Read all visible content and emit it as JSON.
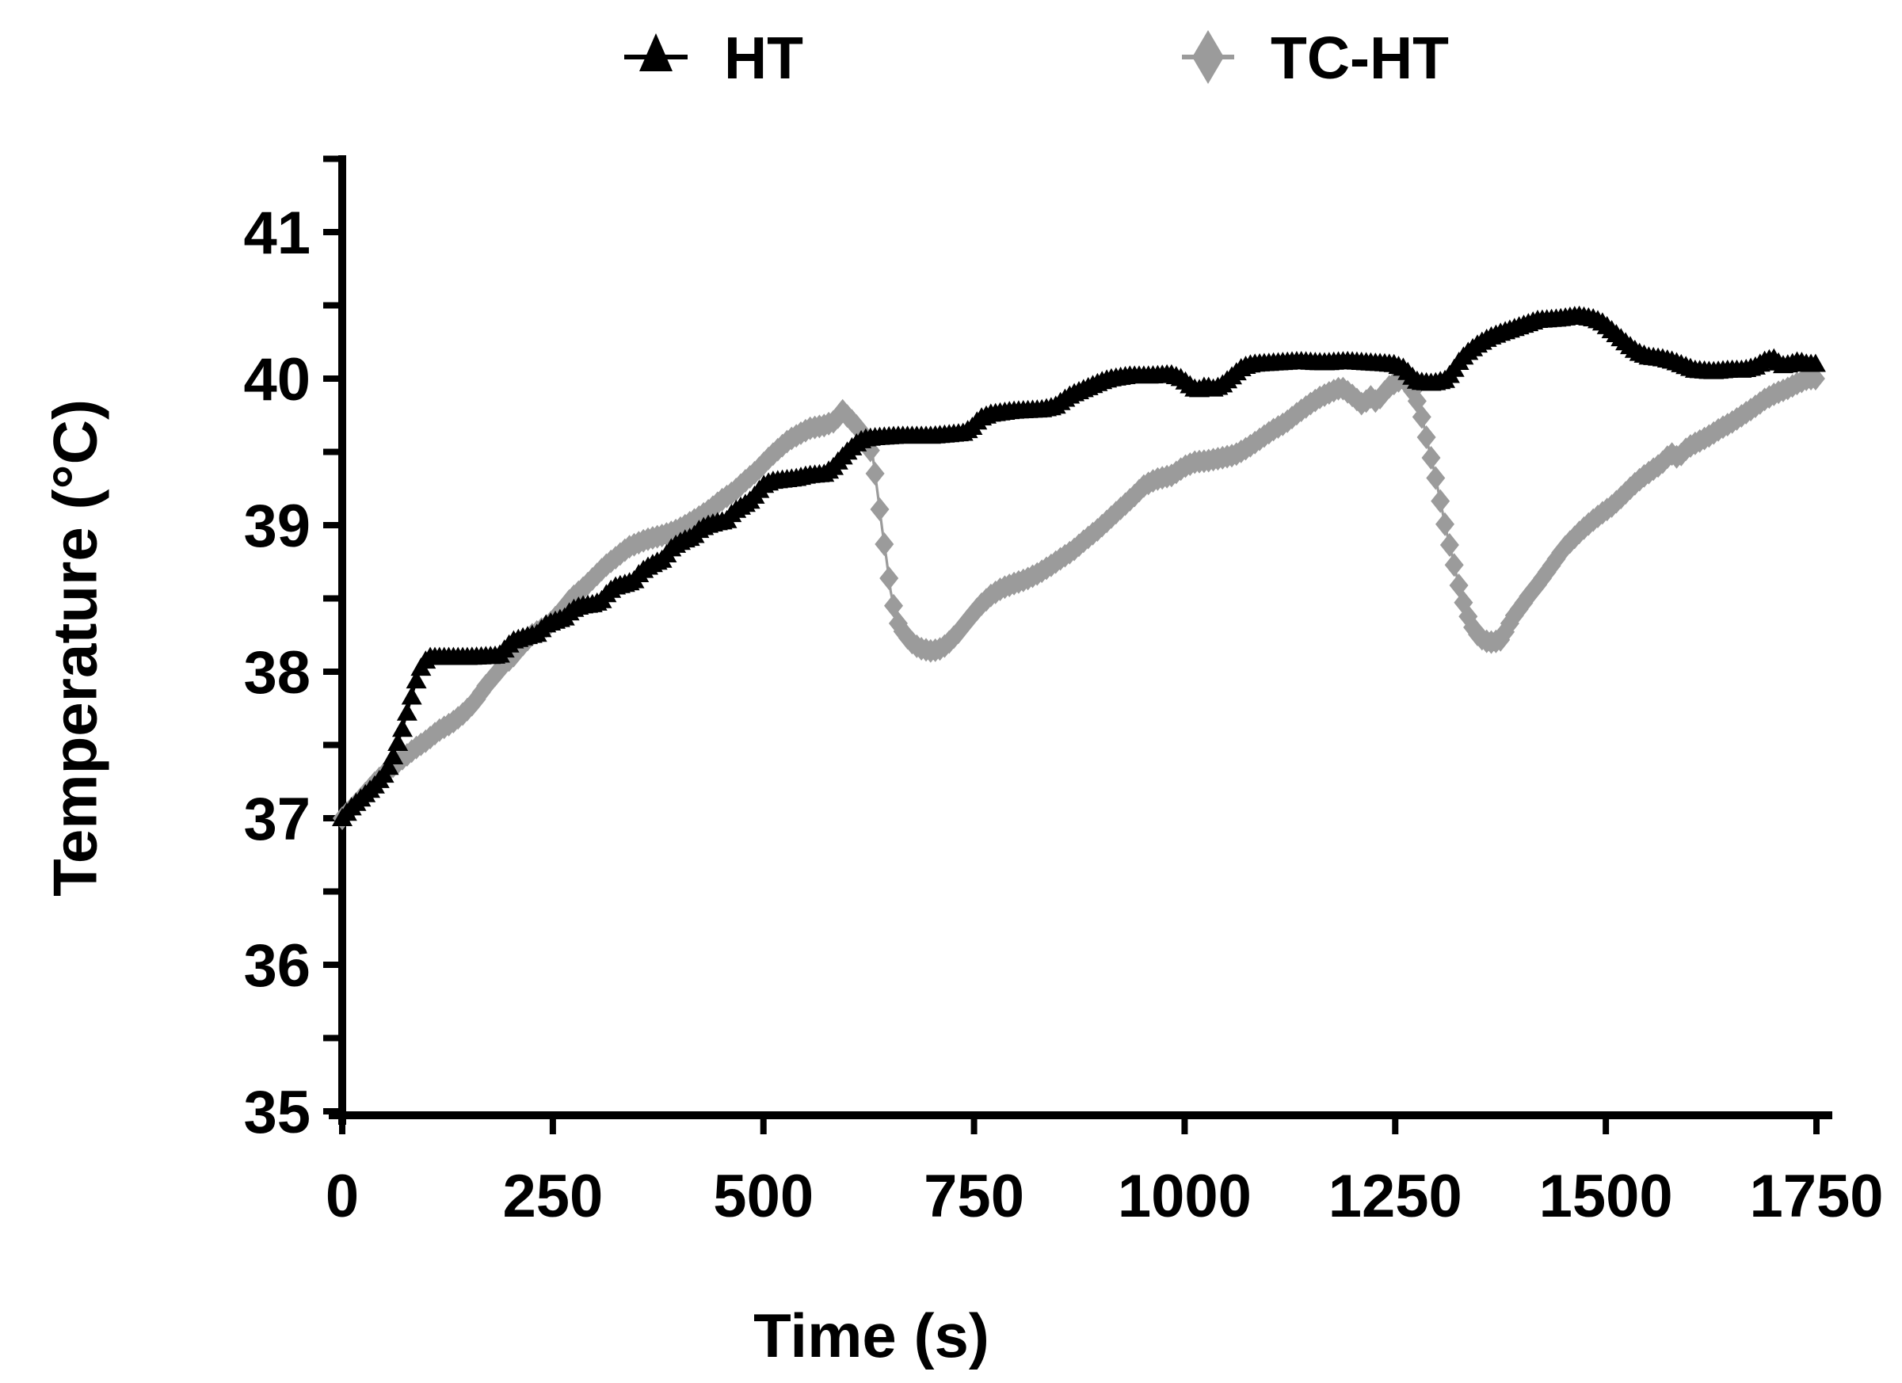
{
  "figure": {
    "background": "#ffffff",
    "text_color": "#000000"
  },
  "legend": {
    "position": "top-center",
    "items": [
      {
        "label": "HT",
        "marker": "triangle",
        "color": "#000000"
      },
      {
        "label": "TC-HT",
        "marker": "diamond",
        "color": "#9b9b9b"
      }
    ]
  },
  "axes": {
    "x_title": "Time (s)",
    "y_title": "Temperature (°C)"
  },
  "chart_data": {
    "type": "line",
    "title": "",
    "xlabel": "Time (s)",
    "ylabel": "Temperature (°C)",
    "xlim": [
      0,
      1750
    ],
    "ylim": [
      35,
      41.5
    ],
    "x_ticks": [
      0,
      250,
      500,
      750,
      1000,
      1250,
      1500,
      1750
    ],
    "y_major_ticks": [
      35,
      36,
      37,
      38,
      39,
      40,
      41
    ],
    "y_minor_tick_step": 0.5,
    "grid": false,
    "legend_position": "top-center",
    "axis_color": "#000000",
    "marker_spacing_s": 5.5,
    "series": [
      {
        "name": "TC-HT",
        "marker": "diamond",
        "color": "#9b9b9b",
        "points": [
          [
            0,
            37.0
          ],
          [
            20,
            37.12
          ],
          [
            40,
            37.25
          ],
          [
            55,
            37.33
          ],
          [
            70,
            37.4
          ],
          [
            85,
            37.47
          ],
          [
            100,
            37.53
          ],
          [
            115,
            37.6
          ],
          [
            130,
            37.65
          ],
          [
            145,
            37.72
          ],
          [
            158,
            37.8
          ],
          [
            170,
            37.9
          ],
          [
            182,
            37.98
          ],
          [
            192,
            38.05
          ],
          [
            202,
            38.1
          ],
          [
            212,
            38.17
          ],
          [
            225,
            38.25
          ],
          [
            245,
            38.32
          ],
          [
            258,
            38.4
          ],
          [
            272,
            38.5
          ],
          [
            288,
            38.58
          ],
          [
            300,
            38.65
          ],
          [
            312,
            38.72
          ],
          [
            325,
            38.78
          ],
          [
            340,
            38.85
          ],
          [
            360,
            38.9
          ],
          [
            380,
            38.93
          ],
          [
            395,
            38.96
          ],
          [
            408,
            39.0
          ],
          [
            422,
            39.05
          ],
          [
            435,
            39.1
          ],
          [
            450,
            39.17
          ],
          [
            465,
            39.23
          ],
          [
            478,
            39.3
          ],
          [
            492,
            39.37
          ],
          [
            505,
            39.45
          ],
          [
            518,
            39.52
          ],
          [
            530,
            39.58
          ],
          [
            542,
            39.62
          ],
          [
            555,
            39.66
          ],
          [
            572,
            39.68
          ],
          [
            585,
            39.71
          ],
          [
            594,
            39.78
          ],
          [
            602,
            39.73
          ],
          [
            610,
            39.68
          ],
          [
            617,
            39.63
          ],
          [
            624,
            39.56
          ],
          [
            630,
            39.46
          ],
          [
            636,
            39.2
          ],
          [
            641,
            38.97
          ],
          [
            646,
            38.77
          ],
          [
            651,
            38.55
          ],
          [
            658,
            38.35
          ],
          [
            666,
            38.27
          ],
          [
            674,
            38.21
          ],
          [
            685,
            38.16
          ],
          [
            700,
            38.14
          ],
          [
            712,
            38.16
          ],
          [
            722,
            38.21
          ],
          [
            733,
            38.28
          ],
          [
            744,
            38.36
          ],
          [
            757,
            38.45
          ],
          [
            770,
            38.52
          ],
          [
            783,
            38.57
          ],
          [
            797,
            38.6
          ],
          [
            812,
            38.63
          ],
          [
            826,
            38.67
          ],
          [
            840,
            38.72
          ],
          [
            855,
            38.78
          ],
          [
            868,
            38.83
          ],
          [
            882,
            38.9
          ],
          [
            897,
            38.97
          ],
          [
            912,
            39.05
          ],
          [
            927,
            39.13
          ],
          [
            940,
            39.2
          ],
          [
            952,
            39.27
          ],
          [
            965,
            39.31
          ],
          [
            985,
            39.34
          ],
          [
            1000,
            39.4
          ],
          [
            1012,
            39.43
          ],
          [
            1028,
            39.44
          ],
          [
            1045,
            39.46
          ],
          [
            1060,
            39.48
          ],
          [
            1075,
            39.53
          ],
          [
            1090,
            39.59
          ],
          [
            1105,
            39.65
          ],
          [
            1120,
            39.7
          ],
          [
            1133,
            39.76
          ],
          [
            1147,
            39.82
          ],
          [
            1160,
            39.87
          ],
          [
            1174,
            39.91
          ],
          [
            1186,
            39.94
          ],
          [
            1196,
            39.9
          ],
          [
            1204,
            39.86
          ],
          [
            1212,
            39.82
          ],
          [
            1220,
            39.88
          ],
          [
            1228,
            39.84
          ],
          [
            1236,
            39.9
          ],
          [
            1244,
            39.95
          ],
          [
            1252,
            39.98
          ],
          [
            1260,
            40.0
          ],
          [
            1266,
            39.96
          ],
          [
            1272,
            39.9
          ],
          [
            1278,
            39.82
          ],
          [
            1284,
            39.68
          ],
          [
            1290,
            39.52
          ],
          [
            1297,
            39.35
          ],
          [
            1304,
            39.15
          ],
          [
            1311,
            38.95
          ],
          [
            1318,
            38.78
          ],
          [
            1325,
            38.6
          ],
          [
            1332,
            38.45
          ],
          [
            1340,
            38.32
          ],
          [
            1348,
            38.25
          ],
          [
            1356,
            38.21
          ],
          [
            1366,
            38.2
          ],
          [
            1376,
            38.22
          ],
          [
            1383,
            38.3
          ],
          [
            1391,
            38.38
          ],
          [
            1400,
            38.45
          ],
          [
            1410,
            38.53
          ],
          [
            1420,
            38.6
          ],
          [
            1430,
            38.68
          ],
          [
            1440,
            38.76
          ],
          [
            1450,
            38.84
          ],
          [
            1460,
            38.9
          ],
          [
            1472,
            38.97
          ],
          [
            1484,
            39.03
          ],
          [
            1495,
            39.08
          ],
          [
            1507,
            39.13
          ],
          [
            1520,
            39.2
          ],
          [
            1532,
            39.27
          ],
          [
            1544,
            39.33
          ],
          [
            1556,
            39.38
          ],
          [
            1566,
            39.42
          ],
          [
            1577,
            39.49
          ],
          [
            1586,
            39.46
          ],
          [
            1597,
            39.53
          ],
          [
            1610,
            39.57
          ],
          [
            1623,
            39.61
          ],
          [
            1636,
            39.66
          ],
          [
            1649,
            39.7
          ],
          [
            1662,
            39.75
          ],
          [
            1675,
            39.8
          ],
          [
            1689,
            39.86
          ],
          [
            1702,
            39.9
          ],
          [
            1715,
            39.93
          ],
          [
            1728,
            39.97
          ],
          [
            1740,
            40.0
          ],
          [
            1750,
            40.0
          ]
        ]
      },
      {
        "name": "HT",
        "marker": "triangle",
        "color": "#000000",
        "points": [
          [
            0,
            37.0
          ],
          [
            12,
            37.08
          ],
          [
            25,
            37.15
          ],
          [
            38,
            37.22
          ],
          [
            50,
            37.3
          ],
          [
            58,
            37.38
          ],
          [
            64,
            37.48
          ],
          [
            70,
            37.58
          ],
          [
            75,
            37.68
          ],
          [
            80,
            37.78
          ],
          [
            85,
            37.88
          ],
          [
            90,
            37.98
          ],
          [
            96,
            38.06
          ],
          [
            104,
            38.1
          ],
          [
            150,
            38.1
          ],
          [
            186,
            38.11
          ],
          [
            194,
            38.16
          ],
          [
            202,
            38.21
          ],
          [
            218,
            38.24
          ],
          [
            232,
            38.26
          ],
          [
            241,
            38.32
          ],
          [
            254,
            38.35
          ],
          [
            264,
            38.37
          ],
          [
            272,
            38.42
          ],
          [
            283,
            38.45
          ],
          [
            297,
            38.46
          ],
          [
            307,
            38.48
          ],
          [
            315,
            38.54
          ],
          [
            324,
            38.58
          ],
          [
            336,
            38.6
          ],
          [
            346,
            38.62
          ],
          [
            354,
            38.68
          ],
          [
            364,
            38.72
          ],
          [
            374,
            38.75
          ],
          [
            382,
            38.77
          ],
          [
            388,
            38.83
          ],
          [
            397,
            38.87
          ],
          [
            406,
            38.9
          ],
          [
            416,
            38.92
          ],
          [
            424,
            38.97
          ],
          [
            433,
            39.0
          ],
          [
            446,
            39.02
          ],
          [
            456,
            39.03
          ],
          [
            464,
            39.09
          ],
          [
            474,
            39.13
          ],
          [
            483,
            39.16
          ],
          [
            491,
            39.21
          ],
          [
            499,
            39.27
          ],
          [
            509,
            39.3
          ],
          [
            522,
            39.31
          ],
          [
            538,
            39.32
          ],
          [
            552,
            39.34
          ],
          [
            572,
            39.35
          ],
          [
            582,
            39.39
          ],
          [
            591,
            39.45
          ],
          [
            601,
            39.51
          ],
          [
            611,
            39.56
          ],
          [
            619,
            39.59
          ],
          [
            632,
            39.6
          ],
          [
            660,
            39.61
          ],
          [
            700,
            39.61
          ],
          [
            738,
            39.63
          ],
          [
            748,
            39.67
          ],
          [
            757,
            39.73
          ],
          [
            770,
            39.76
          ],
          [
            795,
            39.78
          ],
          [
            830,
            39.79
          ],
          [
            846,
            39.81
          ],
          [
            855,
            39.85
          ],
          [
            865,
            39.89
          ],
          [
            877,
            39.92
          ],
          [
            889,
            39.95
          ],
          [
            901,
            39.98
          ],
          [
            911,
            40.0
          ],
          [
            934,
            40.02
          ],
          [
            958,
            40.02
          ],
          [
            984,
            40.03
          ],
          [
            997,
            40.0
          ],
          [
            1005,
            39.96
          ],
          [
            1015,
            39.92
          ],
          [
            1025,
            39.95
          ],
          [
            1035,
            39.93
          ],
          [
            1045,
            39.96
          ],
          [
            1053,
            40.0
          ],
          [
            1061,
            40.04
          ],
          [
            1069,
            40.08
          ],
          [
            1080,
            40.1
          ],
          [
            1108,
            40.11
          ],
          [
            1136,
            40.12
          ],
          [
            1164,
            40.11
          ],
          [
            1192,
            40.12
          ],
          [
            1220,
            40.11
          ],
          [
            1248,
            40.1
          ],
          [
            1261,
            40.07
          ],
          [
            1269,
            40.02
          ],
          [
            1277,
            39.98
          ],
          [
            1294,
            39.97
          ],
          [
            1309,
            39.99
          ],
          [
            1317,
            40.04
          ],
          [
            1325,
            40.11
          ],
          [
            1334,
            40.17
          ],
          [
            1347,
            40.23
          ],
          [
            1361,
            40.28
          ],
          [
            1374,
            40.31
          ],
          [
            1389,
            40.34
          ],
          [
            1404,
            40.37
          ],
          [
            1419,
            40.4
          ],
          [
            1444,
            40.41
          ],
          [
            1467,
            40.43
          ],
          [
            1486,
            40.41
          ],
          [
            1497,
            40.38
          ],
          [
            1507,
            40.33
          ],
          [
            1517,
            40.28
          ],
          [
            1527,
            40.23
          ],
          [
            1538,
            40.18
          ],
          [
            1551,
            40.15
          ],
          [
            1566,
            40.14
          ],
          [
            1580,
            40.12
          ],
          [
            1593,
            40.09
          ],
          [
            1606,
            40.06
          ],
          [
            1626,
            40.05
          ],
          [
            1646,
            40.06
          ],
          [
            1663,
            40.06
          ],
          [
            1677,
            40.08
          ],
          [
            1688,
            40.12
          ],
          [
            1699,
            40.14
          ],
          [
            1709,
            40.09
          ],
          [
            1719,
            40.1
          ],
          [
            1729,
            40.12
          ],
          [
            1739,
            40.1
          ],
          [
            1750,
            40.1
          ]
        ]
      }
    ]
  }
}
